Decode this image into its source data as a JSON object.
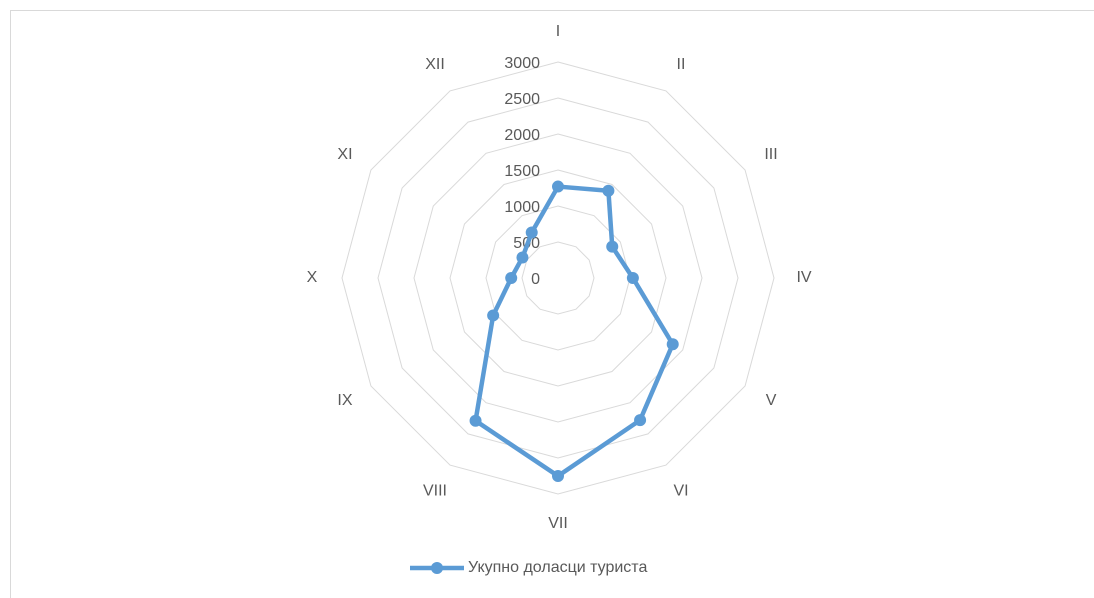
{
  "chart_data": {
    "type": "radar",
    "categories": [
      "I",
      "II",
      "III",
      "IV",
      "V",
      "VI",
      "VII",
      "VIII",
      "IX",
      "X",
      "XI",
      "XII"
    ],
    "series": [
      {
        "name": "Укупно доласци туриста",
        "color": "#5b9bd5",
        "values": [
          1270,
          1400,
          870,
          1040,
          1840,
          2280,
          2750,
          2290,
          1040,
          650,
          570,
          730
        ]
      }
    ],
    "ylim": [
      0,
      3000
    ],
    "yticks": [
      0,
      500,
      1000,
      1500,
      2000,
      2500,
      3000
    ],
    "grid": true,
    "legend": "bottom"
  }
}
